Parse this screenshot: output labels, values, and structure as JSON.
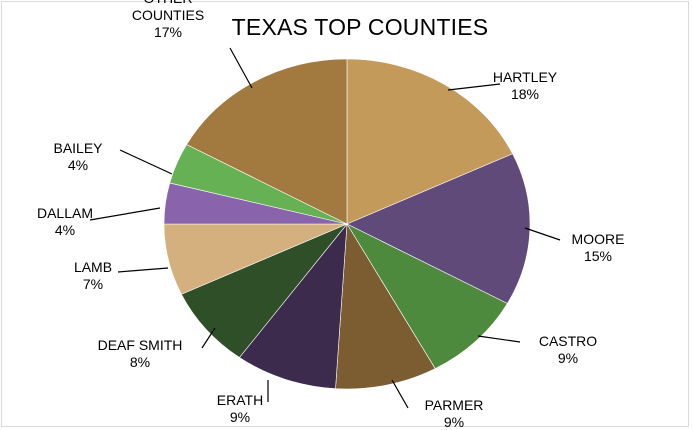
{
  "chart_data": {
    "type": "pie",
    "title": "TEXAS TOP COUNTIES",
    "slices": [
      {
        "name": "HARTLEY",
        "value": 18,
        "label": "18%",
        "color": "#c49a5a"
      },
      {
        "name": "MOORE",
        "value": 15,
        "label": "15%",
        "color": "#5f4a7a"
      },
      {
        "name": "CASTRO",
        "value": 9,
        "label": "9%",
        "color": "#4e8a3e"
      },
      {
        "name": "PARMER",
        "value": 9,
        "label": "9%",
        "color": "#7c5c31"
      },
      {
        "name": "ERATH",
        "value": 9,
        "label": "9%",
        "color": "#3d2b4d"
      },
      {
        "name": "DEAF SMITH",
        "value": 8,
        "label": "8%",
        "color": "#2f4f29"
      },
      {
        "name": "LAMB",
        "value": 7,
        "label": "7%",
        "color": "#d4b07e"
      },
      {
        "name": "DALLAM",
        "value": 4,
        "label": "4%",
        "color": "#8a63ad"
      },
      {
        "name": "BAILEY",
        "value": 4,
        "label": "4%",
        "color": "#67b155"
      },
      {
        "name": "OTHER\nCOUNTIES",
        "value": 17,
        "label": "17%",
        "color": "#a27a3f"
      }
    ],
    "start_angle": "12 o'clock",
    "direction": "clockwise",
    "legend": "none"
  }
}
